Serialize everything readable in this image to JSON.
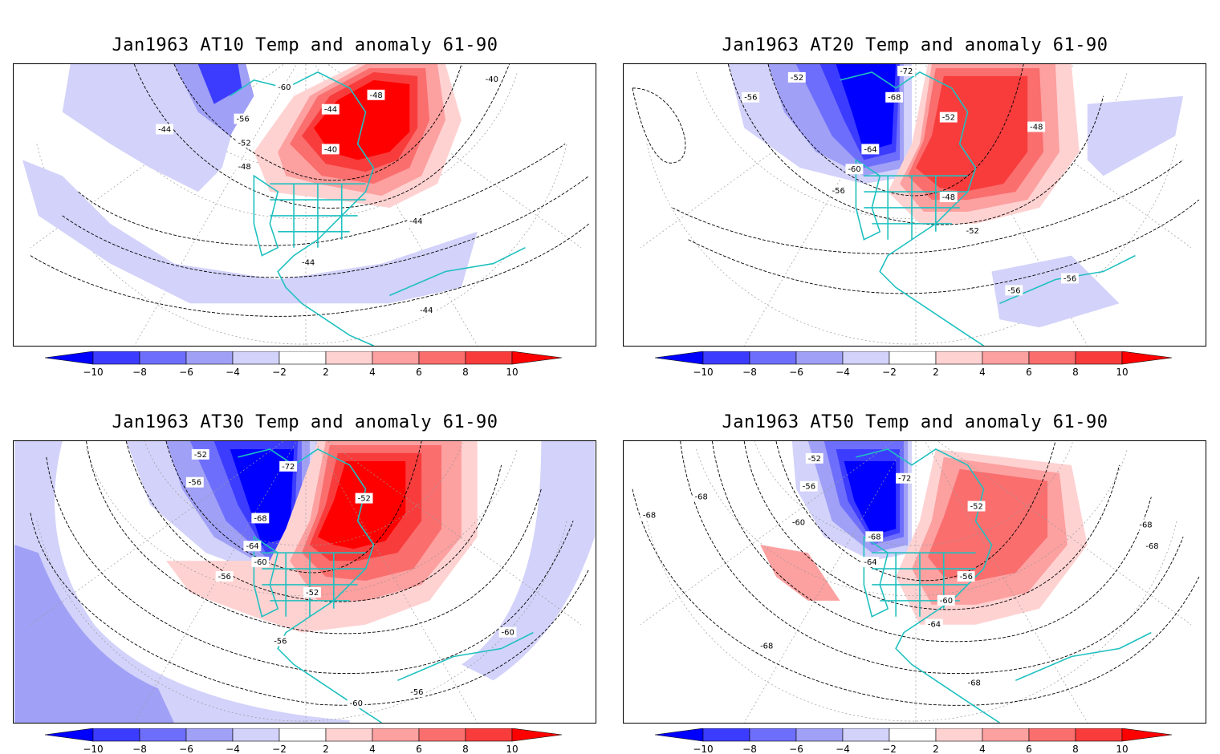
{
  "colorbar": {
    "ticks": [
      "−10",
      "−8",
      "−6",
      "−4",
      "−2",
      "2",
      "4",
      "6",
      "8",
      "10"
    ],
    "colors": [
      "#0000ff",
      "#3c3cff",
      "#6e6efc",
      "#a0a0f6",
      "#d2d2fa",
      "#ffffff",
      "#ffd2d2",
      "#fca0a0",
      "#fa6e6e",
      "#f83c3c",
      "#ff0000"
    ]
  },
  "panels": [
    {
      "title": "Jan1963 AT10 Temp and anomaly 61-90",
      "contour_labels": [
        "-60",
        "-56",
        "-52",
        "-48",
        "-44",
        "-44",
        "-40",
        "-48",
        "-40",
        "-44",
        "-44",
        "-44"
      ]
    },
    {
      "title": "Jan1963 AT20 Temp and anomaly 61-90",
      "contour_labels": [
        "-52",
        "-72",
        "-56",
        "-68",
        "-52",
        "-48",
        "-64",
        "-60",
        "-56",
        "-48",
        "-52",
        "-56",
        "-56"
      ]
    },
    {
      "title": "Jan1963 AT30 Temp and anomaly 61-90",
      "contour_labels": [
        "-52",
        "-72",
        "-56",
        "-52",
        "-68",
        "-64",
        "-60",
        "-56",
        "-52",
        "-56",
        "-60",
        "-56",
        "-60"
      ]
    },
    {
      "title": "Jan1963 AT50 Temp and anomaly 61-90",
      "contour_labels": [
        "-52",
        "-72",
        "-56",
        "-68",
        "-52",
        "-60",
        "-68",
        "-68",
        "-64",
        "-68",
        "-56",
        "-60",
        "-64",
        "-68",
        "-68",
        "-68"
      ]
    }
  ],
  "colors": {
    "coastline": "#20c0c0",
    "contour": "#000000",
    "grid": "#808080"
  }
}
